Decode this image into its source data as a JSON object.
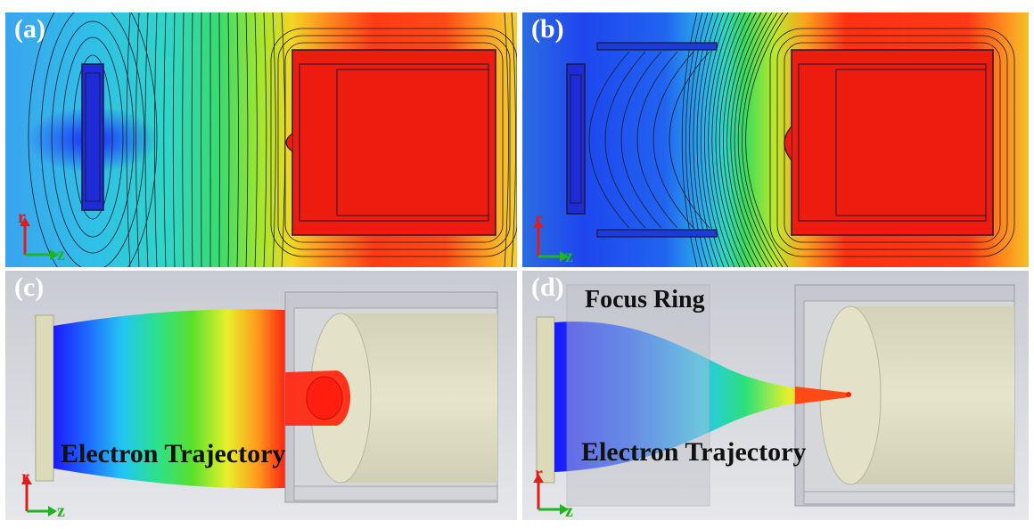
{
  "panels": {
    "a": {
      "label": "(a)"
    },
    "b": {
      "label": "(b)"
    },
    "c": {
      "label": "(c)",
      "trajectory_label": "Electron Trajectory"
    },
    "d": {
      "label": "(d)",
      "trajectory_label": "Electron Trajectory",
      "ring_label": "Focus Ring"
    }
  },
  "axes": {
    "r": "r",
    "z": "z"
  },
  "colors": {
    "r_axis": "#e21b1b",
    "z_axis": "#1fb51f",
    "electrode": "#ee1c0f",
    "frame_line": "#1a1a3a"
  },
  "field_colormap": [
    "#1b3bff",
    "#2b8cf0",
    "#20d0d8",
    "#29e07a",
    "#d6ef28",
    "#ff9f1e",
    "#ff2a10"
  ]
}
